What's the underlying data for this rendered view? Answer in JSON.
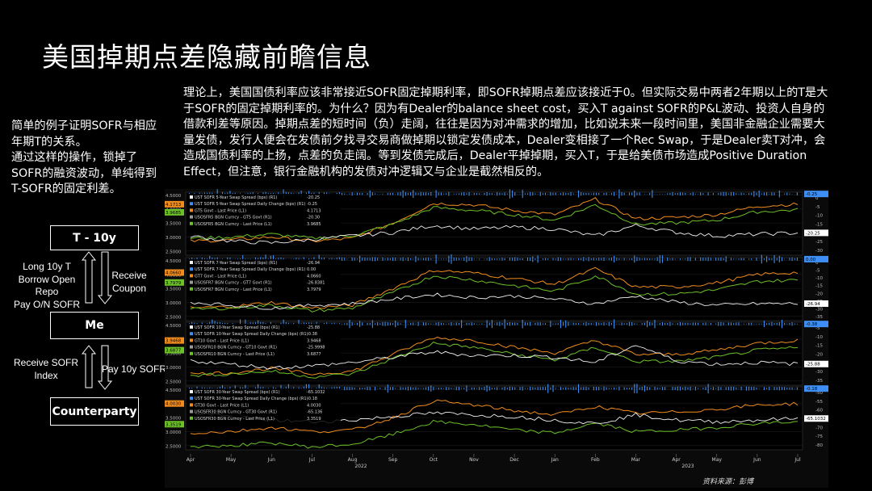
{
  "page": {
    "title": "美国掉期点差隐藏前瞻信息",
    "intro": "理论上，美国国债利率应该非常接近SOFR固定掉期利率，即SOFR掉期点差应该接近于0。但实际交易中两者2年期以上的T是大于SOFR的固定掉期利率的。为什么？因为有Dealer的balance sheet cost，买入T against SOFR的P&L波动、投资人自身的借款利差等原因。掉期点差的短时间（负）走阔，往往是因为对冲需求的增加，比如说未来一段时间里，美国非金融企业需要大量发债，发行人便会在发债前夕找寻交易商做掉期以锁定发债成本，Dealer变相接了一个Rec Swap，于是Dealer卖T对冲，会造成国债利率的上扬，点差的负走阔。等到发债完成后，Dealer平掉掉期，买入T，于是给美债市场造成Positive Duration Effect，但注意，银行金融机构的发债对冲逻辑又与企业是截然相反的。",
    "left_note": "简单的例子证明SOFR与相应年期T的关系。\n通过这样的操作，锁掉了SOFR的融资波动，单纯得到T-SOFR的固定利差。",
    "source": "资料来源：彭博"
  },
  "flow": {
    "box_top": "T - 10y",
    "box_mid": "Me",
    "box_bottom": "Counterparty",
    "left_upper": "Long 10y T\nBorrow Open\nRepo\nPay O/N SOFR",
    "right_upper": "Receive\nCoupon",
    "left_lower": "Receive SOFR\nIndex",
    "right_lower": "Pay 10y SOFR"
  },
  "colors": {
    "white_series": "#f2f2f2",
    "blue_series": "#3d8ff5",
    "orange_series": "#f08c1e",
    "green_series": "#6cc028",
    "gray_series": "#9a9a9a"
  },
  "chart_data": [
    {
      "type": "line",
      "x_ticks": [
        "Apr",
        "May",
        "Jun",
        "Jul",
        "Aug",
        "Sep",
        "Oct",
        "Nov",
        "Dec",
        "Jan",
        "Feb",
        "Mar",
        "Apr",
        "May",
        "Jun",
        "Jul"
      ],
      "x_year_labels": [
        "2022",
        "2023"
      ],
      "left_ticks": [
        "4.5000",
        "4.0000",
        "3.5000",
        "3.0000",
        "2.5000"
      ],
      "right_ticks": [
        "0",
        "-5",
        "-10",
        "-15",
        "-20",
        "-25",
        "-30"
      ],
      "legend": [
        {
          "label": "UST SOFR 5-Year Swap Spread (bps) (R1)",
          "value": "-20.25"
        },
        {
          "label": "UST SOFR 5-Year Swap Spread Daily Change (bps) (R1)",
          "value": "-0.25"
        },
        {
          "label": "GT5 Govt - Last Price (L1)",
          "value": "4.1713"
        },
        {
          "label": "USOSFR5 BGN Curncy - GT5 Govt (R1)",
          "value": "-20.30"
        },
        {
          "label": "USOSFR5 BGN Curncy - Last Price (L1)",
          "value": "3.9685"
        }
      ],
      "left_badges": [
        "4.1713",
        "3.9685"
      ],
      "right_badges": [
        "-0.25",
        "-20.25"
      ],
      "series": [
        {
          "name": "GT5 Govt - Last Price (L1)",
          "axis": "left",
          "values": [
            2.85,
            2.9,
            3.0,
            2.85,
            2.95,
            3.5,
            4.2,
            4.15,
            3.95,
            3.8,
            4.35,
            3.65,
            3.7,
            3.8,
            4.1,
            4.17
          ]
        },
        {
          "name": "USOSFR5 BGN Curncy - Last Price (L1)",
          "axis": "left",
          "values": [
            2.95,
            3.0,
            3.1,
            2.95,
            3.05,
            3.45,
            4.05,
            3.95,
            3.8,
            3.6,
            4.15,
            3.45,
            3.5,
            3.6,
            3.9,
            3.97
          ]
        },
        {
          "name": "UST SOFR 5-Year Swap Spread (bps) (R1)",
          "axis": "right",
          "values": [
            -22,
            -25,
            -26,
            -24,
            -22,
            -20,
            -16,
            -18,
            -17,
            -18,
            -22,
            -16,
            -20,
            -22,
            -21,
            -20.25
          ]
        }
      ]
    },
    {
      "type": "line",
      "x_ticks": [
        "Apr",
        "May",
        "Jun",
        "Jul",
        "Aug",
        "Sep",
        "Oct",
        "Nov",
        "Dec",
        "Jan",
        "Feb",
        "Mar",
        "Apr",
        "May",
        "Jun",
        "Jul"
      ],
      "x_year_labels": [
        "2022",
        "2023"
      ],
      "left_ticks": [
        "4.5000",
        "4.0000",
        "3.5000",
        "3.0000",
        "2.5000"
      ],
      "right_ticks": [
        "0",
        "-5",
        "-10",
        "-15",
        "-20",
        "-25",
        "-30",
        "-35"
      ],
      "legend": [
        {
          "label": "UST SOFR 7-Year Swap Spread (bps) (R1)",
          "value": "-26.94"
        },
        {
          "label": "UST SOFR 7-Year Swap Spread Daily Change (bps) (R1)",
          "value": "0.00"
        },
        {
          "label": "GT7 Govt - Last Price (L1)",
          "value": "4.0660"
        },
        {
          "label": "USOSFR7 BGN Curncy - GT7 Govt (R1)",
          "value": "-26.8381"
        },
        {
          "label": "USOSFR7 BGN Curncy - Last Price (L1)",
          "value": "3.7979"
        }
      ],
      "left_badges": [
        "4.0660",
        "3.7979"
      ],
      "right_badges": [
        "0.00",
        "-26.94"
      ],
      "series": [
        {
          "name": "GT7 Govt - Last Price (L1)",
          "axis": "left",
          "values": [
            2.8,
            2.85,
            3.0,
            2.8,
            2.9,
            3.5,
            4.15,
            4.05,
            3.85,
            3.65,
            4.2,
            3.55,
            3.55,
            3.7,
            4.0,
            4.07
          ]
        },
        {
          "name": "USOSFR7 BGN Curncy - Last Price (L1)",
          "axis": "left",
          "values": [
            2.75,
            2.8,
            2.9,
            2.7,
            2.8,
            3.35,
            3.95,
            3.8,
            3.6,
            3.4,
            3.95,
            3.3,
            3.3,
            3.45,
            3.75,
            3.8
          ]
        },
        {
          "name": "UST SOFR 7-Year Swap Spread (bps) (R1)",
          "axis": "right",
          "values": [
            -26,
            -28,
            -30,
            -28,
            -27,
            -24,
            -21,
            -23,
            -22,
            -24,
            -27,
            -22,
            -26,
            -28,
            -27,
            -26.94
          ]
        }
      ]
    },
    {
      "type": "line",
      "x_ticks": [
        "Apr",
        "May",
        "Jun",
        "Jul",
        "Aug",
        "Sep",
        "Oct",
        "Nov",
        "Dec",
        "Jan",
        "Feb",
        "Mar",
        "Apr",
        "May",
        "Jun",
        "Jul"
      ],
      "x_year_labels": [
        "2022",
        "2023"
      ],
      "left_ticks": [
        "4.5000",
        "4.0000",
        "3.5000",
        "3.0000",
        "2.5000"
      ],
      "right_ticks": [
        "-5",
        "-10",
        "-15",
        "-20",
        "-25",
        "-30",
        "-35"
      ],
      "legend": [
        {
          "label": "UST SOFR 10-Year Swap Spread (bps) (R1)",
          "value": "-25.88"
        },
        {
          "label": "UST SOFR 10-Year Swap Spread Daily Change (bps) (R1)",
          "value": "-0.38"
        },
        {
          "label": "GT10 Govt - Last Price (L1)",
          "value": "3.9468"
        },
        {
          "label": "USOSFR10 BGN Curncy - GT10 Govt (R1)",
          "value": "-25.9998"
        },
        {
          "label": "USOSFR10 BGN Curncy - Last Price (L1)",
          "value": "3.6877"
        }
      ],
      "left_badges": [
        "3.9468",
        "3.6877"
      ],
      "right_badges": [
        "-0.38",
        "-25.88"
      ],
      "series": [
        {
          "name": "GT10 Govt - Last Price (L1)",
          "axis": "left",
          "values": [
            2.75,
            2.8,
            2.95,
            2.75,
            2.85,
            3.45,
            4.05,
            3.95,
            3.7,
            3.5,
            3.95,
            3.45,
            3.45,
            3.6,
            3.85,
            3.95
          ]
        },
        {
          "name": "USOSFR10 BGN Curncy - Last Price (L1)",
          "axis": "left",
          "values": [
            2.7,
            2.75,
            2.85,
            2.65,
            2.75,
            3.3,
            3.85,
            3.7,
            3.45,
            3.25,
            3.7,
            3.2,
            3.2,
            3.35,
            3.6,
            3.69
          ]
        },
        {
          "name": "UST SOFR 10-Year Swap Spread (bps) (R1)",
          "axis": "right",
          "values": [
            -24,
            -26,
            -28,
            -27,
            -25,
            -22,
            -19,
            -21,
            -21,
            -22,
            -25,
            -15,
            -24,
            -26,
            -25,
            -25.88
          ]
        }
      ]
    },
    {
      "type": "line",
      "x_ticks": [
        "Apr",
        "May",
        "Jun",
        "Jul",
        "Aug",
        "Sep",
        "Oct",
        "Nov",
        "Dec",
        "Jan",
        "Feb",
        "Mar",
        "Apr",
        "May",
        "Jun",
        "Jul"
      ],
      "x_year_labels": [
        "2022",
        "2023"
      ],
      "left_ticks": [
        "4.5000",
        "4.0000",
        "3.5000",
        "3.0000",
        "2.5000"
      ],
      "right_ticks": [
        "-50",
        "-55",
        "-60",
        "-65",
        "-70",
        "-75",
        "-80"
      ],
      "legend": [
        {
          "label": "UST SOFR 30-Year Swap Spread (bps) (R1)",
          "value": "-65.1032"
        },
        {
          "label": "UST SOFR 30-Year Swap Spread Daily Change (bps) (R1)",
          "value": "-0.18"
        },
        {
          "label": "GT30 Govt - Last Price (L1)",
          "value": "4.0030"
        },
        {
          "label": "USOSFR30 BGN Curncy - GT30 Govt (R1)",
          "value": "-65.136"
        },
        {
          "label": "USOSFR30 BGN Curncy - Last Price (L1)",
          "value": "3.3519"
        }
      ],
      "left_badges": [
        "4.0030",
        "3.3519"
      ],
      "right_badges": [
        "-0.18",
        "-65.1032"
      ],
      "series": [
        {
          "name": "GT30 Govt - Last Price (L1)",
          "axis": "left",
          "values": [
            2.95,
            3.0,
            3.15,
            3.0,
            3.05,
            3.5,
            4.1,
            3.95,
            3.75,
            3.6,
            3.9,
            3.65,
            3.7,
            3.8,
            3.95,
            4.0
          ]
        },
        {
          "name": "USOSFR30 BGN Curncy - Last Price (L1)",
          "axis": "left",
          "values": [
            2.45,
            2.5,
            2.6,
            2.45,
            2.55,
            2.9,
            3.35,
            3.25,
            3.05,
            2.95,
            3.3,
            3.0,
            3.05,
            3.15,
            3.3,
            3.35
          ]
        },
        {
          "name": "UST SOFR 30-Year Swap Spread (bps) (R1)",
          "axis": "right",
          "values": [
            -62,
            -64,
            -66,
            -67,
            -66,
            -64,
            -62,
            -63,
            -64,
            -66,
            -68,
            -63,
            -66,
            -67,
            -66,
            -65.1
          ]
        }
      ]
    }
  ]
}
